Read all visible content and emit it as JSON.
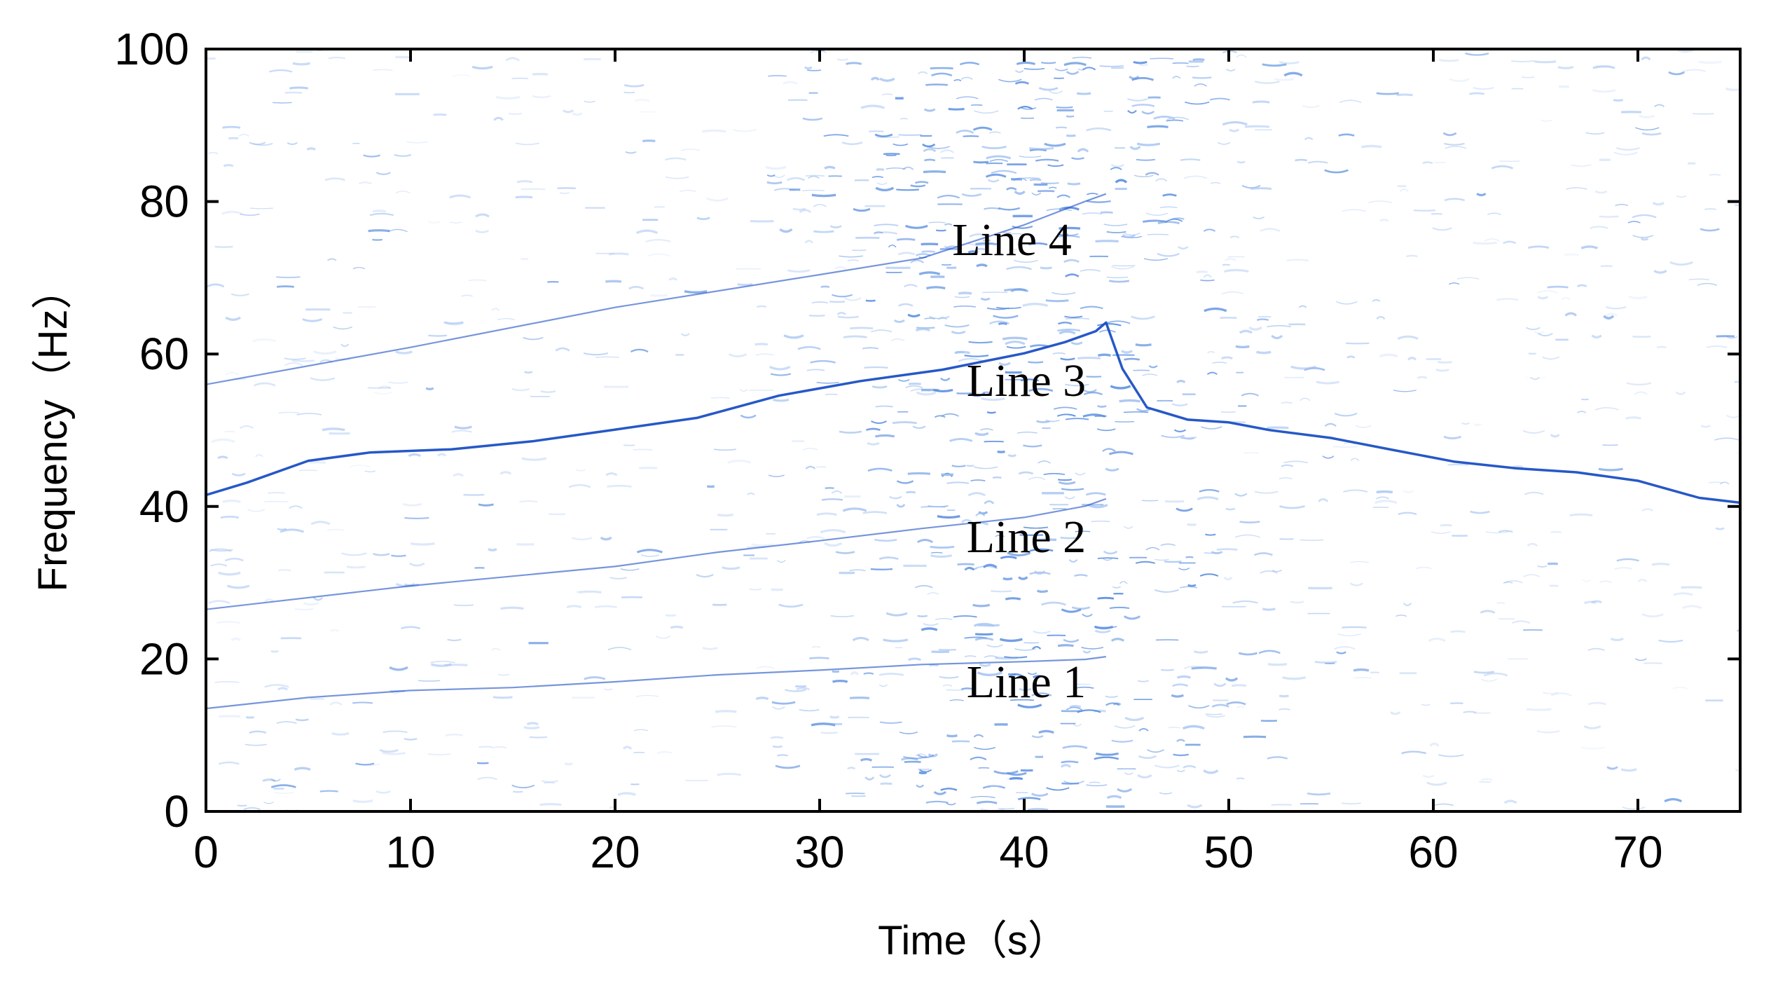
{
  "chart_data": {
    "type": "spectrogram",
    "xlabel": "Time（s）",
    "ylabel": "Frequency（Hz）",
    "xlim": [
      0,
      75
    ],
    "ylim": [
      0,
      100
    ],
    "xticks": [
      0,
      10,
      20,
      30,
      40,
      50,
      60,
      70
    ],
    "yticks": [
      0,
      20,
      40,
      60,
      80,
      100
    ],
    "grid": false,
    "colors": {
      "line": "#1a4fc4",
      "noise": "#5b8fe0",
      "noise_light": "#a9c6f2"
    },
    "series": [
      {
        "x": [
          0,
          5,
          10,
          15,
          20,
          25,
          30,
          35,
          40,
          43,
          44
        ],
        "y": [
          13.5,
          15,
          16,
          16.3,
          17,
          18,
          18.6,
          19.2,
          19.6,
          20,
          20.3
        ]
      },
      {
        "x": [
          0,
          10,
          20,
          25,
          30,
          35,
          40,
          43,
          44
        ],
        "y": [
          26.5,
          29.5,
          32,
          34,
          35.6,
          37,
          38.5,
          40,
          41
        ]
      },
      {
        "x": [
          0,
          2,
          5,
          8,
          12,
          16,
          20,
          24,
          28,
          32,
          36,
          40,
          42,
          43.5,
          44,
          44.8,
          46,
          48,
          50,
          52,
          55,
          58,
          61,
          64,
          67,
          70,
          73,
          75
        ],
        "y": [
          41.5,
          43,
          46,
          47,
          47.5,
          48.5,
          50,
          51.5,
          54.5,
          56.5,
          58,
          60,
          61.5,
          63,
          64,
          58,
          53,
          51.5,
          51,
          50,
          49,
          47.5,
          46,
          45,
          44.5,
          43.5,
          41,
          40.5
        ]
      },
      {
        "x": [
          0,
          10,
          20,
          30,
          35,
          40,
          43,
          44
        ],
        "y": [
          56,
          61,
          66,
          70.5,
          72.5,
          77,
          80,
          81
        ]
      }
    ],
    "annotations": [
      {
        "text": "Line 1",
        "x": 40.1,
        "y": 15
      },
      {
        "text": "Line 2",
        "x": 40.1,
        "y": 34
      },
      {
        "text": "Line 3",
        "x": 40.1,
        "y": 54.5
      },
      {
        "text": "Line 4",
        "x": 39.4,
        "y": 73
      }
    ]
  }
}
